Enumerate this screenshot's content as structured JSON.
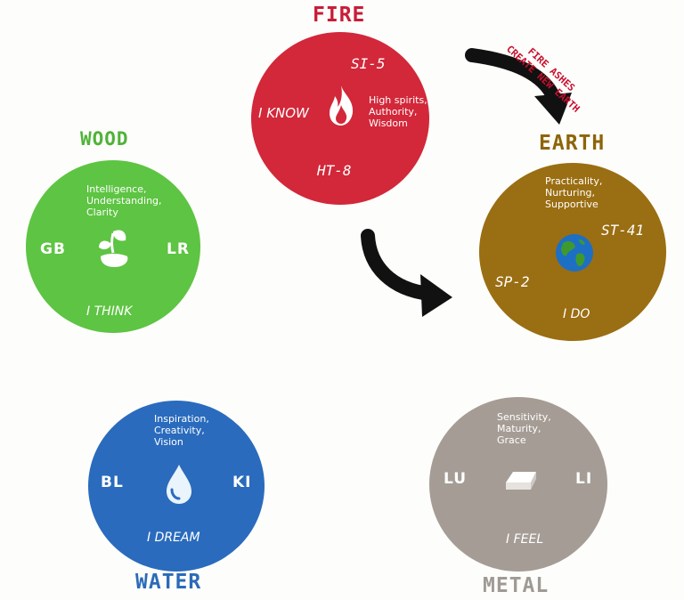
{
  "colors": {
    "fire": "#d2283a",
    "wood": "#5ec443",
    "earth": "#9a6e12",
    "water": "#2a6bbd",
    "metal": "#a59c95",
    "fire_title": "#c81d38",
    "wood_title": "#4fb338",
    "earth_title": "#8d6508",
    "water_title": "#2b6bb8",
    "metal_title": "#a09a94"
  },
  "note": [
    "FIRE ASHES",
    "CREATE NEW EARTH"
  ],
  "elements": {
    "fire": {
      "name": "FIRE",
      "point_top": "SI-5",
      "point_bottom": "HT-8",
      "motto": "I KNOW",
      "qualities": [
        "High spirits,",
        "Authority,",
        "Wisdom"
      ],
      "icon": "flame-icon"
    },
    "wood": {
      "name": "WOOD",
      "qualities": [
        "Intelligence,",
        "Understanding,",
        "Clarity"
      ],
      "left": "GB",
      "right": "LR",
      "motto": "I THINK",
      "icon": "sprout-icon"
    },
    "earth": {
      "name": "EARTH",
      "qualities": [
        "Practicality,",
        "Nurturing,",
        "Supportive"
      ],
      "point_right": "ST-41",
      "point_left": "SP-2",
      "motto": "I DO",
      "icon": "globe-icon"
    },
    "water": {
      "name": "WATER",
      "qualities": [
        "Inspiration,",
        "Creativity,",
        "Vision"
      ],
      "left": "BL",
      "right": "KI",
      "motto": "I DREAM",
      "icon": "water-drop-icon"
    },
    "metal": {
      "name": "METAL",
      "qualities": [
        "Sensitivity,",
        "Maturity,",
        "Grace"
      ],
      "left": "LU",
      "right": "LI",
      "motto": "I FEEL",
      "icon": "metal-ingot-icon"
    }
  }
}
